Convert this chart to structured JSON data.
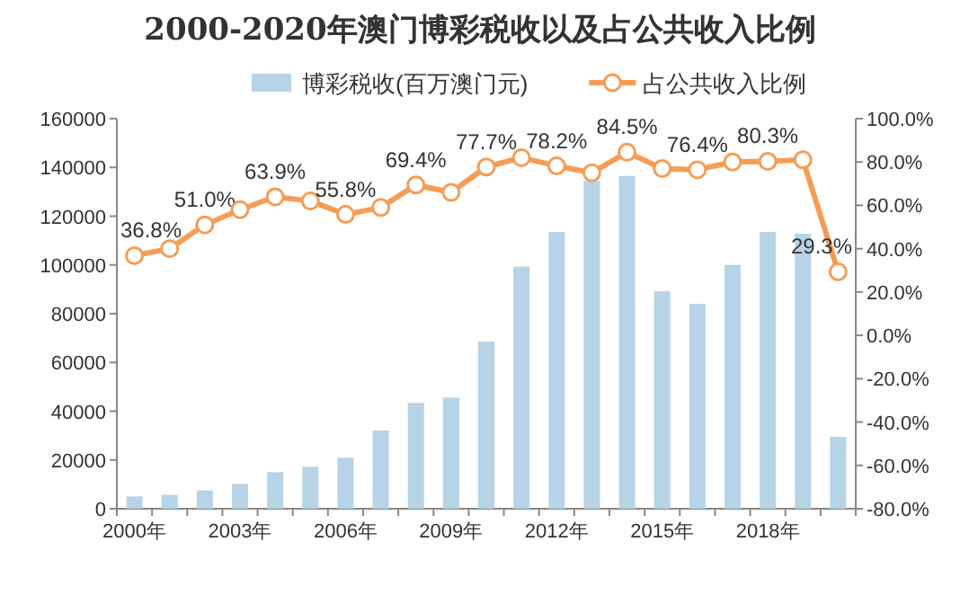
{
  "chart_data": {
    "type": "bar",
    "title": "2000-2020年澳门博彩税收以及占公共收入比例",
    "categories": [
      "2000年",
      null,
      null,
      "2003年",
      null,
      null,
      "2006年",
      null,
      null,
      "2009年",
      null,
      null,
      "2012年",
      null,
      null,
      "2015年",
      null,
      null,
      "2018年",
      null,
      null
    ],
    "series": [
      {
        "name": "博彩税收(百万澳门元)",
        "color": "#b7d3e6",
        "values": [
          5000,
          5700,
          7500,
          10200,
          15000,
          17200,
          20900,
          32100,
          43400,
          45600,
          68500,
          99300,
          113500,
          134500,
          136500,
          89200,
          84000,
          100000,
          113500,
          112800,
          29500
        ]
      },
      {
        "name": "占公共收入比例",
        "type": "line",
        "axis": "y2",
        "color": "#f59d56",
        "values": [
          36.8,
          40,
          51.0,
          58,
          63.9,
          62,
          55.8,
          59,
          69.4,
          66,
          77.7,
          82,
          78.2,
          75,
          84.5,
          77,
          76.4,
          80,
          80.3,
          81,
          29.3
        ],
        "value_labels": [
          "36.8%",
          null,
          "51.0%",
          null,
          "63.9%",
          null,
          "55.8%",
          null,
          "69.4%",
          null,
          "77.7%",
          null,
          "78.2%",
          null,
          "84.5%",
          null,
          "76.4%",
          null,
          "80.3%",
          null,
          "29.3%"
        ]
      }
    ],
    "ylim": [
      0,
      160000
    ],
    "yticks": [
      0,
      20000,
      40000,
      60000,
      80000,
      100000,
      120000,
      140000,
      160000
    ],
    "y2lim": [
      -80,
      100
    ],
    "y2ticks": [
      {
        "value": -80,
        "label": "-80.0%"
      },
      {
        "value": -60,
        "label": "-60.0%"
      },
      {
        "value": -40,
        "label": "-40.0%"
      },
      {
        "value": -20,
        "label": "-20.0%"
      },
      {
        "value": 0,
        "label": "0.0%"
      },
      {
        "value": 20,
        "label": "20.0%"
      },
      {
        "value": 40,
        "label": "40.0%"
      },
      {
        "value": 60,
        "label": "60.0%"
      },
      {
        "value": 80,
        "label": "80.0%"
      },
      {
        "value": 100,
        "label": "100.0%"
      }
    ],
    "legend": "top",
    "grid": false,
    "marker": "circle",
    "line_style": "solid"
  }
}
